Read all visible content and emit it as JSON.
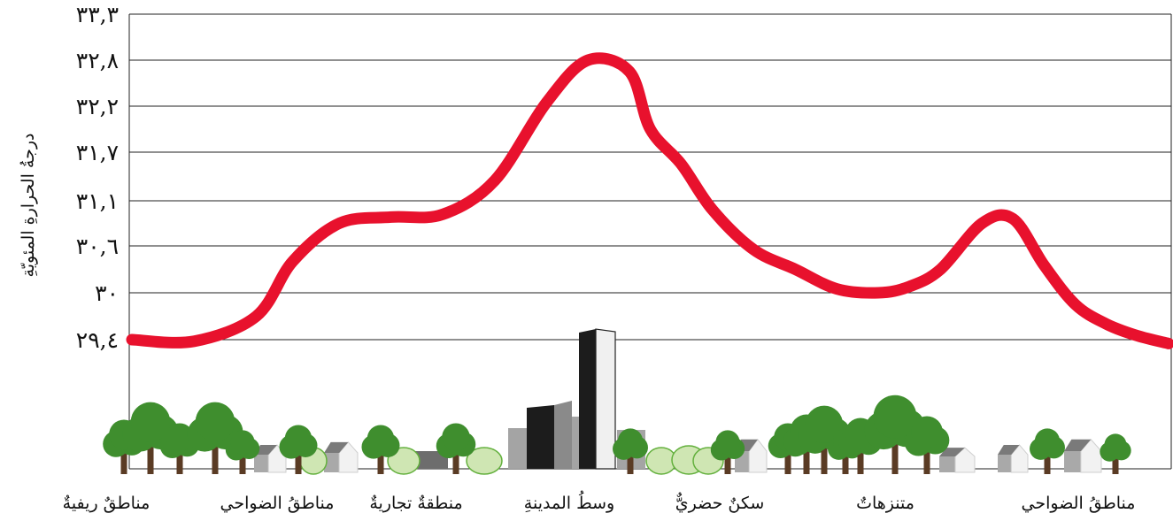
{
  "chart_data": {
    "type": "line",
    "title": "",
    "xlabel": "",
    "ylabel": "درجةُ الحرارةِ المئويّةِ",
    "y_ticks": [
      {
        "value": 29.4,
        "label": "٢٩,٤"
      },
      {
        "value": 30.0,
        "label": "٣٠"
      },
      {
        "value": 30.6,
        "label": "٣٠,٦"
      },
      {
        "value": 31.1,
        "label": "٣١,١"
      },
      {
        "value": 31.7,
        "label": "٣١,٧"
      },
      {
        "value": 32.2,
        "label": "٣٢,٢"
      },
      {
        "value": 32.8,
        "label": "٣٢,٨"
      },
      {
        "value": 33.3,
        "label": "٣٣,٣"
      }
    ],
    "ylim": [
      29.4,
      33.3
    ],
    "grid": true,
    "categories": [
      "مناطقٌ ريفيةٌ",
      "مناطقُ الضواحي",
      "منطقةٌ تجاريةٌ",
      "وسطُ المدينةِ",
      "سكنٌ حضريٌّ",
      "متنزهاتٌ",
      "مناطقُ الضواحي"
    ],
    "series": [
      {
        "color": "#e8112d",
        "x": [
          0.0,
          0.06,
          0.12,
          0.155,
          0.2,
          0.25,
          0.3,
          0.35,
          0.4,
          0.44,
          0.48,
          0.5,
          0.53,
          0.56,
          0.6,
          0.64,
          0.68,
          0.72,
          0.75,
          0.78,
          0.82,
          0.85,
          0.88,
          0.91,
          0.94,
          0.97,
          1.0
        ],
        "y": [
          29.4,
          29.38,
          29.7,
          30.4,
          30.85,
          30.92,
          30.95,
          31.35,
          32.25,
          32.8,
          32.65,
          31.95,
          31.55,
          31.0,
          30.55,
          30.3,
          30.05,
          30.0,
          30.08,
          30.3,
          30.85,
          30.9,
          30.35,
          29.85,
          29.6,
          29.45,
          29.35
        ]
      }
    ],
    "colors": {
      "line": "#e8112d",
      "tree_canopy": "#3f8e2e",
      "trunk": "#5a3b24",
      "bush": "#cfe6b3",
      "building_dark": "#1c1c1c"
    }
  }
}
